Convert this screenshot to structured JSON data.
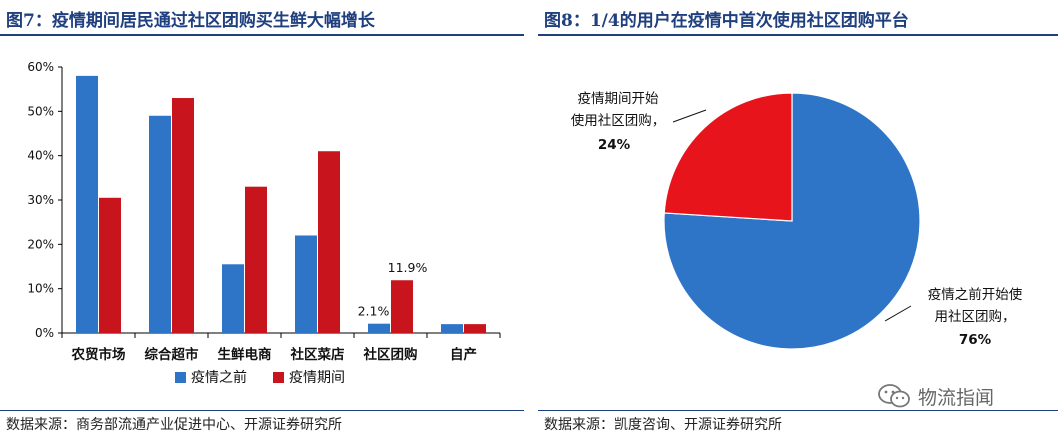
{
  "left": {
    "title": "图7：疫情期间居民通过社区团购买生鲜大幅增长",
    "source": "数据来源：商务部流通产业促进中心、开源证券研究所"
  },
  "right": {
    "title": "图8：1/4的用户在疫情中首次使用社区团购平台",
    "source": "数据来源：凯度咨询、开源证券研究所"
  },
  "watermark": {
    "text": "物流指闻",
    "icon": "wechat-icon"
  },
  "colors": {
    "blue": "#2e75c8",
    "red": "#c8141c",
    "title": "#1f3f7f"
  },
  "chart_data": [
    {
      "type": "bar",
      "categories": [
        "农贸市场",
        "综合超市",
        "生鲜电商",
        "社区菜店",
        "社区团购",
        "自产"
      ],
      "series": [
        {
          "name": "疫情之前",
          "values": [
            58,
            49,
            15.5,
            22,
            2.1,
            2
          ],
          "color": "#2e75c8"
        },
        {
          "name": "疫情期间",
          "values": [
            30.5,
            53,
            33,
            41,
            11.9,
            2
          ],
          "color": "#c8141c"
        }
      ],
      "yticks": [
        "0%",
        "10%",
        "20%",
        "30%",
        "40%",
        "50%",
        "60%"
      ],
      "ylim": [
        0,
        60
      ],
      "data_labels": [
        {
          "series": 0,
          "index": 4,
          "text": "2.1%"
        },
        {
          "series": 1,
          "index": 4,
          "text": "11.9%"
        }
      ],
      "legend": "bottom"
    },
    {
      "type": "pie",
      "slices": [
        {
          "label": "疫情之前开始使用社区团购，",
          "value": 76,
          "text": "76%",
          "color": "#2e75c8"
        },
        {
          "label": "疫情期间开始使用社区团购，",
          "value": 24,
          "text": "24%",
          "color": "#e8141c"
        }
      ]
    }
  ]
}
